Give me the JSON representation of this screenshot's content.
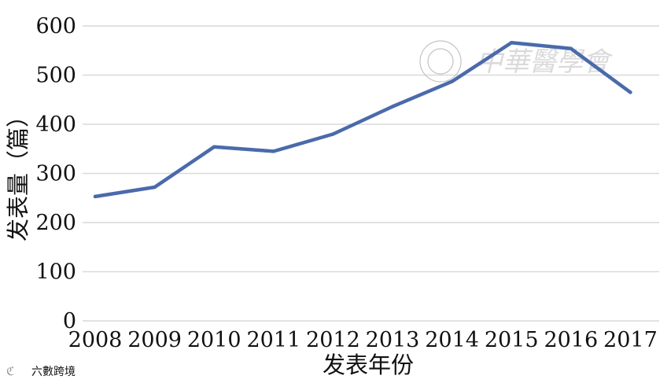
{
  "chart_data": {
    "type": "line",
    "x": [
      "2008",
      "2009",
      "2010",
      "2011",
      "2012",
      "2013",
      "2014",
      "2015",
      "2016",
      "2017"
    ],
    "series": [
      {
        "values": [
          253,
          272,
          354,
          345,
          380,
          436,
          487,
          566,
          554,
          465
        ]
      }
    ],
    "xlabel": "发表年份",
    "ylabel": "发表量（篇）",
    "ylim": [
      0,
      600
    ],
    "yticks": [
      0,
      100,
      200,
      300,
      400,
      500,
      600
    ],
    "grid": true,
    "line_color": "#4a6aab",
    "grid_color": "#d9d9d9"
  },
  "watermark": {
    "top_text": "中華醫學會",
    "corner_text": "六數跨境"
  }
}
